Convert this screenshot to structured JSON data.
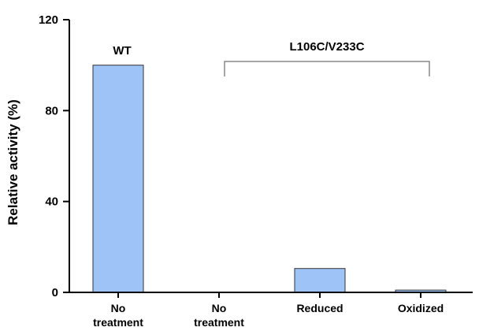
{
  "chart_data": {
    "type": "bar",
    "categories": [
      [
        "No",
        "treatment"
      ],
      [
        "No",
        "treatment"
      ],
      [
        "Reduced"
      ],
      [
        "Oxidized"
      ]
    ],
    "values": [
      100,
      0,
      10.5,
      1
    ],
    "ylabel": "Relative activity (%)",
    "xlabel": "",
    "ylim": [
      0,
      120
    ],
    "yticks": [
      "0",
      "40",
      "80",
      "120"
    ],
    "bar_color": "#9dc3f7",
    "bar_edge_color": "#333333",
    "grid": false,
    "legend": "none",
    "annotations": {
      "wt_label": "WT",
      "group_label": "L106C/V233C"
    }
  }
}
